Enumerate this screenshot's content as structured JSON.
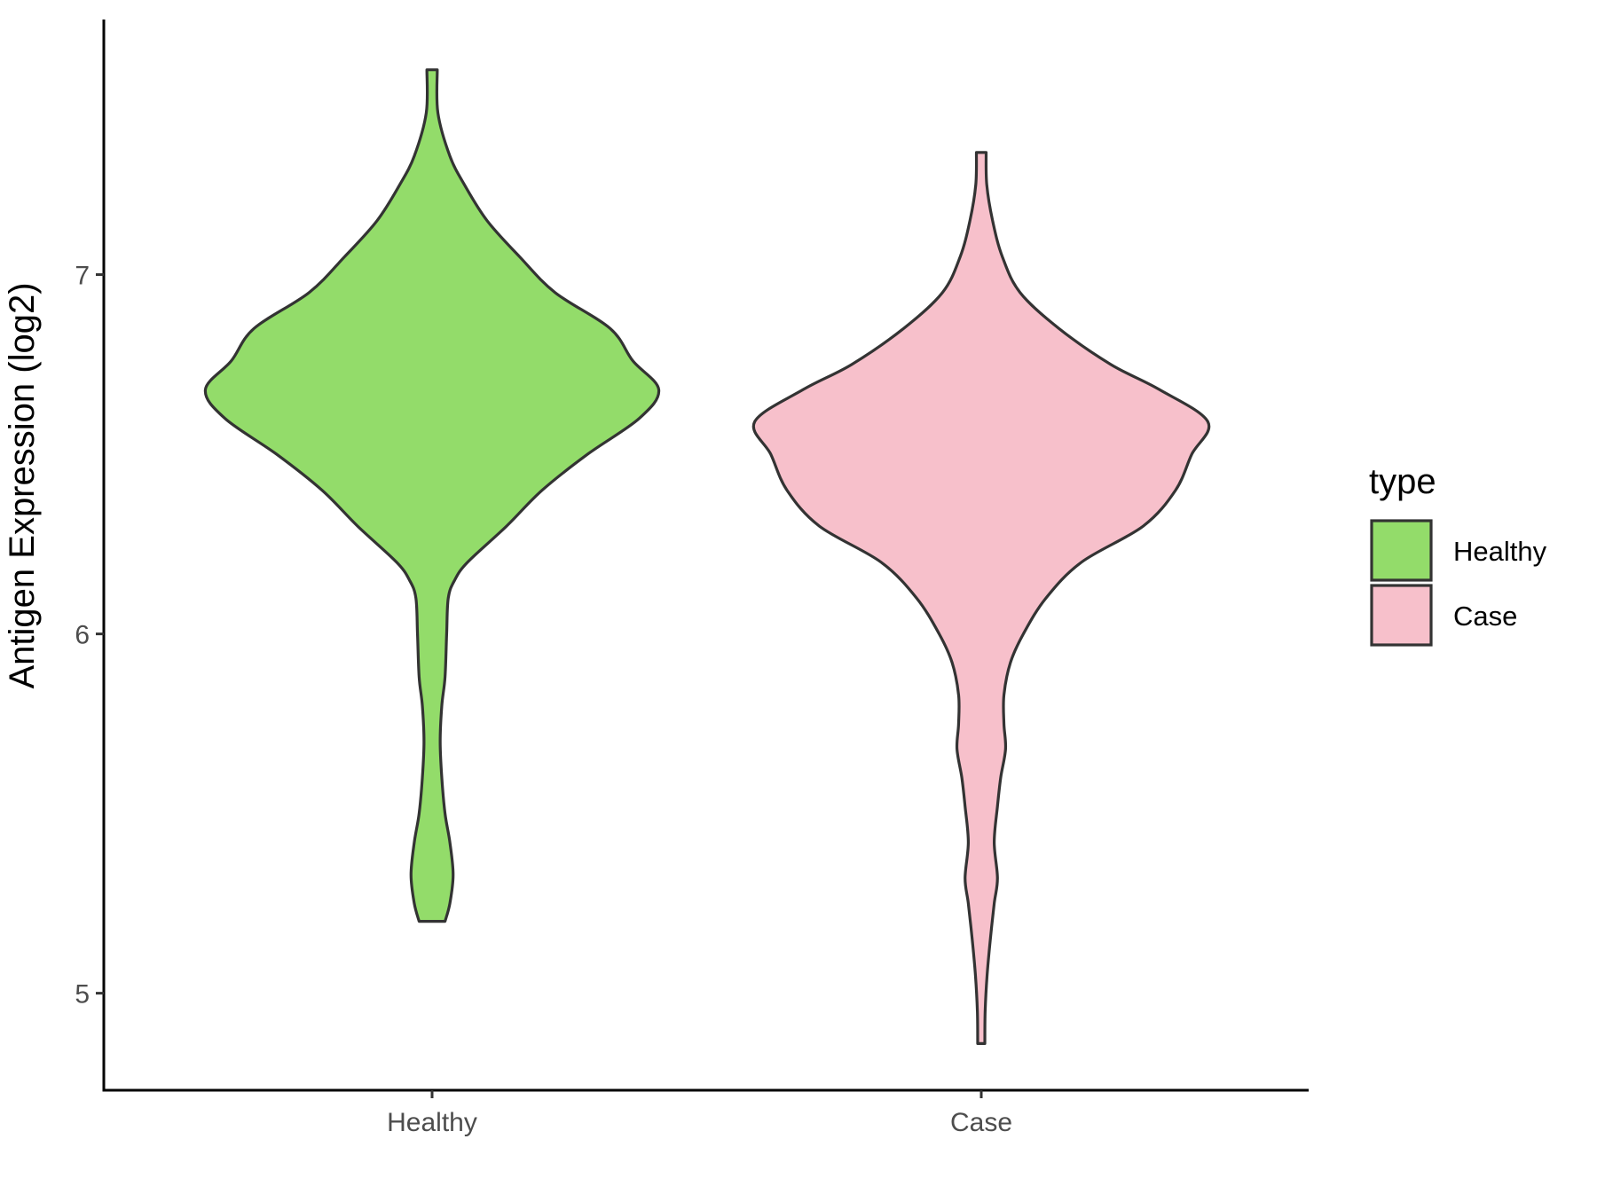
{
  "chart_data": {
    "type": "violin",
    "title": "",
    "xlabel": "",
    "ylabel": "Antigen Expression (log2)",
    "categories": [
      "Healthy",
      "Case"
    ],
    "y_ticks": [
      5,
      6,
      7
    ],
    "ylim": [
      4.73,
      7.71
    ],
    "grid": false,
    "legend": {
      "title": "type",
      "position": "right",
      "entries": [
        {
          "label": "Healthy",
          "color": "#93dc6a"
        },
        {
          "label": "Case",
          "color": "#f7c0cb"
        }
      ]
    },
    "outline_color": "#333333",
    "series": [
      {
        "category": "Healthy",
        "color": "#93dc6a",
        "y_range": [
          5.2,
          7.57
        ],
        "density_profile": [
          [
            5.2,
            0.04
          ],
          [
            5.25,
            0.055
          ],
          [
            5.33,
            0.065
          ],
          [
            5.42,
            0.055
          ],
          [
            5.5,
            0.04
          ],
          [
            5.6,
            0.03
          ],
          [
            5.7,
            0.025
          ],
          [
            5.8,
            0.03
          ],
          [
            5.88,
            0.04
          ],
          [
            6.0,
            0.045
          ],
          [
            6.1,
            0.05
          ],
          [
            6.15,
            0.07
          ],
          [
            6.2,
            0.11
          ],
          [
            6.3,
            0.23
          ],
          [
            6.4,
            0.34
          ],
          [
            6.5,
            0.48
          ],
          [
            6.6,
            0.64
          ],
          [
            6.68,
            0.7
          ],
          [
            6.76,
            0.62
          ],
          [
            6.85,
            0.55
          ],
          [
            6.95,
            0.38
          ],
          [
            7.05,
            0.27
          ],
          [
            7.15,
            0.17
          ],
          [
            7.25,
            0.1
          ],
          [
            7.33,
            0.055
          ],
          [
            7.45,
            0.018
          ],
          [
            7.57,
            0.016
          ]
        ]
      },
      {
        "category": "Case",
        "color": "#f7c0cb",
        "y_range": [
          4.86,
          7.34
        ],
        "density_profile": [
          [
            4.86,
            0.011
          ],
          [
            4.95,
            0.012
          ],
          [
            5.05,
            0.018
          ],
          [
            5.15,
            0.028
          ],
          [
            5.25,
            0.04
          ],
          [
            5.32,
            0.05
          ],
          [
            5.42,
            0.04
          ],
          [
            5.52,
            0.05
          ],
          [
            5.6,
            0.06
          ],
          [
            5.68,
            0.075
          ],
          [
            5.75,
            0.07
          ],
          [
            5.83,
            0.07
          ],
          [
            5.92,
            0.09
          ],
          [
            6.0,
            0.13
          ],
          [
            6.1,
            0.2
          ],
          [
            6.2,
            0.31
          ],
          [
            6.3,
            0.5
          ],
          [
            6.4,
            0.6
          ],
          [
            6.5,
            0.65
          ],
          [
            6.59,
            0.7
          ],
          [
            6.68,
            0.55
          ],
          [
            6.75,
            0.4
          ],
          [
            6.85,
            0.24
          ],
          [
            6.95,
            0.12
          ],
          [
            7.05,
            0.065
          ],
          [
            7.15,
            0.035
          ],
          [
            7.25,
            0.017
          ],
          [
            7.34,
            0.015
          ]
        ]
      }
    ]
  }
}
